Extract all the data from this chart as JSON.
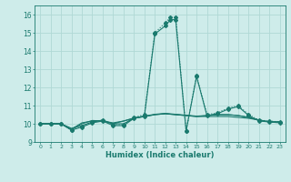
{
  "bg_color": "#ceecea",
  "grid_color": "#b0d8d5",
  "line_color": "#1a7a6e",
  "xlabel": "Humidex (Indice chaleur)",
  "xlim": [
    -0.5,
    23.5
  ],
  "ylim": [
    9,
    16.5
  ],
  "xticks": [
    0,
    1,
    2,
    3,
    4,
    5,
    6,
    7,
    8,
    9,
    10,
    11,
    12,
    13,
    14,
    15,
    16,
    17,
    18,
    19,
    20,
    21,
    22,
    23
  ],
  "yticks": [
    9,
    10,
    11,
    12,
    13,
    14,
    15,
    16
  ],
  "series_flat": [
    {
      "x": [
        0,
        1,
        2,
        3,
        4,
        5,
        6,
        7,
        8,
        9,
        10,
        11,
        12,
        13,
        14,
        15,
        16,
        17,
        18,
        19,
        20,
        21,
        22,
        23
      ],
      "y": [
        10,
        10,
        10,
        9.75,
        9.9,
        10.1,
        10.2,
        10.0,
        10.0,
        10.3,
        10.4,
        10.5,
        10.55,
        10.5,
        10.45,
        10.4,
        10.4,
        10.4,
        10.4,
        10.35,
        10.3,
        10.2,
        10.1,
        10.1
      ]
    },
    {
      "x": [
        0,
        1,
        2,
        3,
        4,
        5,
        6,
        7,
        8,
        9,
        10,
        11,
        12,
        13,
        14,
        15,
        16,
        17,
        18,
        19,
        20,
        21,
        22,
        23
      ],
      "y": [
        10,
        10,
        10,
        9.7,
        10.05,
        10.15,
        10.15,
        10.05,
        10.15,
        10.3,
        10.4,
        10.5,
        10.55,
        10.5,
        10.45,
        10.4,
        10.45,
        10.5,
        10.5,
        10.45,
        10.35,
        10.2,
        10.1,
        10.1
      ]
    },
    {
      "x": [
        0,
        1,
        2,
        3,
        4,
        5,
        6,
        7,
        8,
        9,
        10,
        11,
        12,
        13,
        14,
        15,
        16,
        17,
        18,
        19,
        20,
        21,
        22,
        23
      ],
      "y": [
        10,
        10,
        10,
        9.68,
        10.0,
        10.18,
        10.15,
        10.0,
        10.15,
        10.32,
        10.42,
        10.52,
        10.57,
        10.52,
        10.47,
        10.42,
        10.45,
        10.5,
        10.5,
        10.45,
        10.35,
        10.2,
        10.1,
        10.1
      ]
    }
  ],
  "series_peak1": {
    "x": [
      0,
      1,
      2,
      3,
      4,
      5,
      6,
      7,
      8,
      9,
      10,
      11,
      12,
      12.5,
      13,
      14,
      15,
      16,
      17,
      18,
      19,
      20,
      21,
      22,
      23
    ],
    "y": [
      10,
      10,
      10,
      9.65,
      9.85,
      10.1,
      10.2,
      9.95,
      9.95,
      10.35,
      10.5,
      15.0,
      15.55,
      15.85,
      15.85,
      9.6,
      12.65,
      10.5,
      10.6,
      10.85,
      11.0,
      10.5,
      10.2,
      10.15,
      10.1
    ]
  },
  "series_peak2": {
    "x": [
      0,
      1,
      2,
      3,
      4,
      5,
      6,
      7,
      8,
      9,
      10,
      11,
      12,
      12.5,
      13,
      14,
      15,
      16,
      17,
      18,
      19,
      20,
      21,
      22,
      23
    ],
    "y": [
      10,
      10,
      10,
      9.65,
      9.82,
      10.05,
      10.15,
      9.9,
      9.9,
      10.3,
      10.42,
      14.93,
      15.38,
      15.72,
      15.72,
      9.6,
      12.6,
      10.45,
      10.55,
      10.8,
      10.95,
      10.45,
      10.15,
      10.1,
      10.05
    ]
  }
}
